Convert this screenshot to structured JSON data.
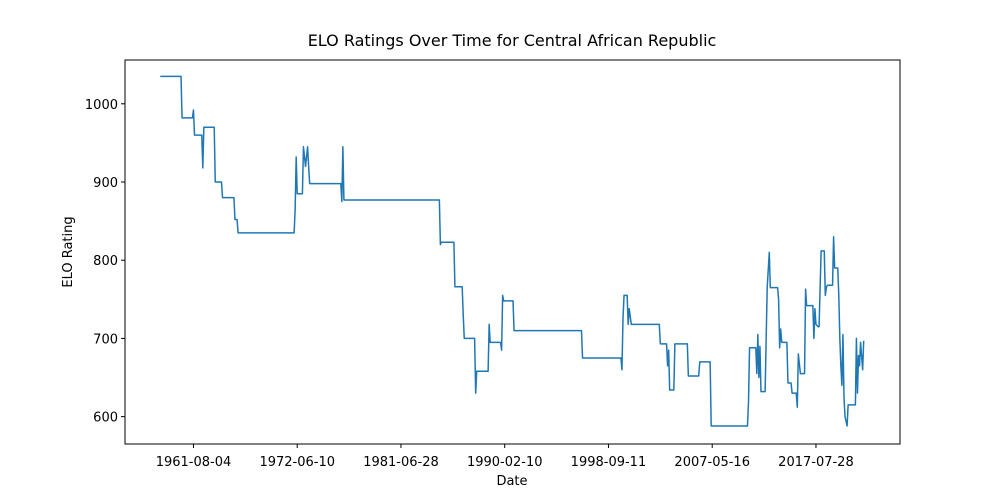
{
  "chart_data": {
    "type": "line",
    "title": "ELO Ratings Over Time for Central African Republic",
    "x_label": "Date",
    "y_label": "ELO Rating",
    "series": [
      {
        "color": "#1f77b4",
        "x": [
          0,
          20,
          21,
          31,
          32,
          33,
          40,
          41,
          42,
          52,
          53,
          59,
          60,
          71,
          72,
          74,
          75,
          129,
          130,
          131,
          132,
          137,
          138,
          140,
          142,
          143,
          144,
          174,
          175,
          176,
          177,
          269,
          270,
          271,
          283,
          284,
          291,
          292,
          293,
          303,
          304,
          305,
          316,
          317,
          318,
          328,
          329,
          330,
          331,
          340,
          341,
          406,
          407,
          444,
          445,
          446,
          447,
          450,
          451,
          452,
          454,
          481,
          482,
          488,
          489,
          490,
          491,
          495,
          496,
          508,
          509,
          519,
          520,
          530,
          531,
          566,
          567,
          568,
          574,
          575,
          576,
          577,
          578,
          579,
          583,
          584,
          585,
          587,
          588,
          595,
          596,
          597,
          598,
          599,
          604,
          605,
          608,
          609,
          613,
          614,
          615,
          617,
          621,
          622,
          623,
          629,
          630,
          631,
          632,
          634,
          635,
          636,
          637,
          640,
          641,
          642,
          643,
          648,
          649,
          650,
          653,
          654,
          655,
          656,
          657,
          658,
          659,
          660,
          662,
          663,
          670,
          671,
          672,
          673,
          674,
          675,
          677,
          678
        ],
        "values": [
          1035,
          1035,
          982,
          982,
          992,
          960,
          960,
          918,
          970,
          970,
          900,
          900,
          880,
          880,
          852,
          852,
          835,
          835,
          865,
          932,
          885,
          885,
          945,
          920,
          945,
          920,
          898,
          898,
          875,
          945,
          877,
          877,
          820,
          823,
          823,
          766,
          766,
          730,
          700,
          700,
          630,
          658,
          658,
          718,
          695,
          695,
          685,
          755,
          748,
          748,
          710,
          710,
          675,
          675,
          660,
          725,
          755,
          755,
          718,
          738,
          718,
          718,
          693,
          693,
          665,
          685,
          634,
          634,
          693,
          693,
          652,
          652,
          670,
          670,
          588,
          588,
          620,
          688,
          688,
          655,
          705,
          650,
          690,
          632,
          632,
          700,
          765,
          810,
          765,
          765,
          750,
          688,
          712,
          695,
          695,
          643,
          643,
          630,
          630,
          612,
          680,
          655,
          655,
          763,
          742,
          742,
          700,
          738,
          718,
          715,
          715,
          765,
          812,
          812,
          755,
          765,
          768,
          768,
          830,
          790,
          790,
          755,
          700,
          665,
          640,
          705,
          625,
          600,
          588,
          615,
          615,
          700,
          630,
          678,
          665,
          695,
          660,
          697
        ]
      }
    ],
    "xlim": [
      -34,
      713
    ],
    "xticks": [
      {
        "value": 32,
        "label": "1961-08-04"
      },
      {
        "value": 132,
        "label": "1972-06-10"
      },
      {
        "value": 232,
        "label": "1981-06-28"
      },
      {
        "value": 332,
        "label": "1990-02-10"
      },
      {
        "value": 432,
        "label": "1998-09-11"
      },
      {
        "value": 532,
        "label": "2007-05-16"
      },
      {
        "value": 632,
        "label": "2017-07-28"
      }
    ],
    "ylim": [
      565,
      1056
    ],
    "yticks": [
      600,
      700,
      800,
      900,
      1000
    ],
    "grid": false
  }
}
